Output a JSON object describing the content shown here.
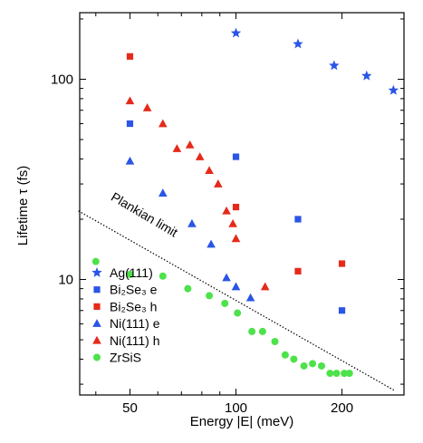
{
  "chart_data": {
    "type": "scatter",
    "xlabel": "Energy |E| (meV)",
    "ylabel": "Lifetime τ (fs)",
    "xscale": "log",
    "yscale": "log",
    "xlim": [
      36,
      300
    ],
    "ylim": [
      2.65,
      215
    ],
    "x_ticks": [
      50,
      100,
      200
    ],
    "y_ticks": [
      10,
      100
    ],
    "grid": false,
    "legend_position": "bottom-left",
    "series": [
      {
        "name": "Ag(111)",
        "marker": "star",
        "color": "#2a55e6",
        "points": [
          [
            100,
            170
          ],
          [
            150,
            150
          ],
          [
            190,
            117
          ],
          [
            235,
            104
          ],
          [
            280,
            88
          ]
        ]
      },
      {
        "name": "Bi₂Se₃ e",
        "marker": "square",
        "color": "#2a55e6",
        "points": [
          [
            50,
            60
          ],
          [
            100,
            41
          ],
          [
            150,
            20
          ],
          [
            200,
            7
          ]
        ]
      },
      {
        "name": "Bi₂Se₃ h",
        "marker": "square",
        "color": "#e52a1a",
        "points": [
          [
            50,
            130
          ],
          [
            100,
            23
          ],
          [
            150,
            11
          ],
          [
            200,
            12
          ]
        ]
      },
      {
        "name": "Ni(111) e",
        "marker": "triangle",
        "color": "#2a55e6",
        "points": [
          [
            50,
            39
          ],
          [
            62,
            27
          ],
          [
            75,
            19
          ],
          [
            85,
            15
          ],
          [
            94,
            10.2
          ],
          [
            100,
            9.2
          ],
          [
            110,
            8.1
          ]
        ]
      },
      {
        "name": "Ni(111) h",
        "marker": "triangle",
        "color": "#e52a1a",
        "points": [
          [
            50,
            78
          ],
          [
            56,
            72
          ],
          [
            62,
            60
          ],
          [
            68,
            45
          ],
          [
            74,
            47
          ],
          [
            79,
            41
          ],
          [
            84,
            35
          ],
          [
            89,
            30
          ],
          [
            94,
            22
          ],
          [
            98,
            19
          ],
          [
            100,
            16
          ],
          [
            121,
            9.2
          ]
        ]
      },
      {
        "name": "ZrSiS",
        "marker": "circle",
        "color": "#4de24a",
        "points": [
          [
            40,
            12.3
          ],
          [
            50,
            10.6
          ],
          [
            62,
            10.4
          ],
          [
            73,
            9
          ],
          [
            84,
            8.3
          ],
          [
            93,
            7.6
          ],
          [
            101,
            6.8
          ],
          [
            111,
            5.5
          ],
          [
            119,
            5.5
          ],
          [
            129,
            4.9
          ],
          [
            138,
            4.2
          ],
          [
            146,
            4
          ],
          [
            156,
            3.7
          ],
          [
            165,
            3.8
          ],
          [
            175,
            3.7
          ],
          [
            185,
            3.4
          ],
          [
            193,
            3.4
          ],
          [
            203,
            3.4
          ],
          [
            210,
            3.4
          ]
        ]
      }
    ],
    "lines": [
      {
        "label": "Plankian limit",
        "style": "dotted",
        "color": "#000000",
        "points": [
          [
            35.7,
            22
          ],
          [
            283,
            2.78
          ]
        ]
      }
    ],
    "annotations": [
      {
        "text": "Plankian limit"
      }
    ]
  }
}
